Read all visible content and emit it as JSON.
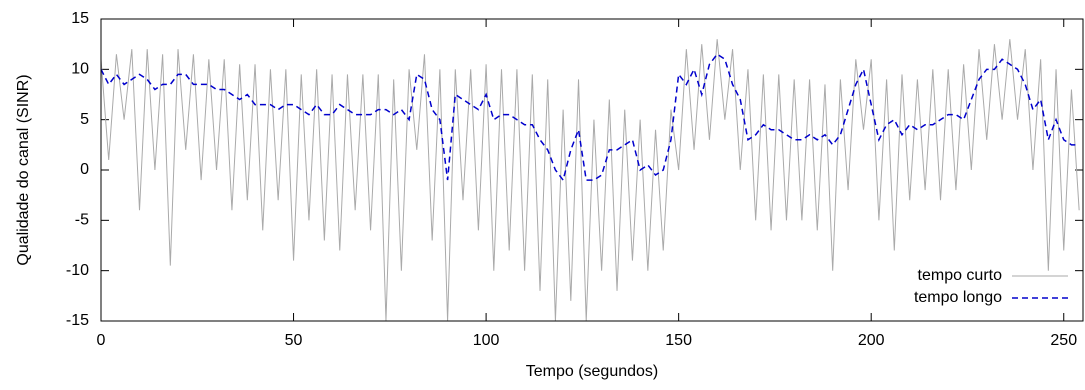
{
  "chart_data": {
    "type": "line",
    "xlabel": "Tempo (segundos)",
    "ylabel": "Qualidade do canal (SINR)",
    "xlim": [
      0,
      255
    ],
    "xticks": [
      0,
      50,
      100,
      150,
      200,
      250
    ],
    "ylim": [
      -15,
      15
    ],
    "yticks": [
      -15,
      -10,
      -5,
      0,
      5,
      10,
      15
    ],
    "legend": "lower right",
    "x": [
      0,
      2,
      4,
      6,
      8,
      10,
      12,
      14,
      16,
      18,
      20,
      22,
      24,
      26,
      28,
      30,
      32,
      34,
      36,
      38,
      40,
      42,
      44,
      46,
      48,
      50,
      52,
      54,
      56,
      58,
      60,
      62,
      64,
      66,
      68,
      70,
      72,
      74,
      76,
      78,
      80,
      82,
      84,
      86,
      88,
      90,
      92,
      94,
      96,
      98,
      100,
      102,
      104,
      106,
      108,
      110,
      112,
      114,
      116,
      118,
      120,
      122,
      124,
      126,
      128,
      130,
      132,
      134,
      136,
      138,
      140,
      142,
      144,
      146,
      148,
      150,
      152,
      154,
      156,
      158,
      160,
      162,
      164,
      166,
      168,
      170,
      172,
      174,
      176,
      178,
      180,
      182,
      184,
      186,
      188,
      190,
      192,
      194,
      196,
      198,
      200,
      202,
      204,
      206,
      208,
      210,
      212,
      214,
      216,
      218,
      220,
      222,
      224,
      226,
      228,
      230,
      232,
      234,
      236,
      238,
      240,
      242,
      244,
      246,
      248,
      250,
      252,
      254
    ],
    "series": [
      {
        "name": "tempo curto",
        "color": "#aaaaaa",
        "dash": "none",
        "values": [
          11,
          1,
          11.5,
          5,
          12,
          -4,
          12,
          0,
          11.5,
          -9.5,
          12,
          2,
          11.5,
          -1,
          11,
          0,
          11,
          -4,
          10.5,
          -3,
          10.5,
          -6,
          10,
          -3,
          10,
          -9,
          9.5,
          -5,
          10,
          -7,
          9.5,
          -8,
          9.5,
          -4,
          9.5,
          -6,
          9.5,
          -15,
          9,
          -10,
          10,
          2,
          11.5,
          -7,
          10,
          -15,
          10,
          -3,
          10,
          -6,
          10.5,
          -10,
          10,
          -8,
          10,
          -10,
          9.5,
          -12,
          9,
          -15,
          6,
          -13,
          9,
          -15,
          5,
          -10,
          7,
          -12,
          6,
          -9,
          5,
          -10,
          4,
          -8,
          6,
          0,
          12,
          2,
          12.5,
          3,
          13,
          5,
          12,
          0,
          10,
          -5,
          9.5,
          -6,
          9.5,
          -5,
          9,
          -5,
          9,
          -6,
          8.5,
          -10,
          9,
          -2,
          11,
          4,
          11,
          -5,
          9,
          -8,
          9.5,
          -3,
          9,
          -2,
          10,
          -3,
          10,
          -2,
          10.5,
          0,
          12,
          3,
          12.5,
          5,
          13,
          5,
          12,
          0,
          11,
          -10,
          10,
          -8,
          8,
          -4
        ]
      },
      {
        "name": "tempo longo",
        "color": "#0000cc",
        "dash": "6,4",
        "values": [
          10,
          8.5,
          9.5,
          8.5,
          9,
          9.5,
          9,
          8,
          8.5,
          8.5,
          9.5,
          9.5,
          8.5,
          8.5,
          8.5,
          8,
          8,
          7.5,
          7,
          7.5,
          6.5,
          6.5,
          6.5,
          6,
          6.5,
          6.5,
          6,
          5.5,
          6.5,
          5.5,
          5.5,
          6.5,
          6,
          5.5,
          5.5,
          5.5,
          6,
          6,
          5.5,
          6,
          5,
          9.5,
          9,
          6,
          5,
          -1,
          7.5,
          7,
          6.5,
          6,
          7.5,
          5,
          5.5,
          5.5,
          5,
          4.5,
          4.5,
          3,
          2,
          0,
          -1,
          2,
          4,
          -1,
          -1,
          -0.5,
          2,
          2,
          2.5,
          3,
          0,
          0.5,
          -0.5,
          0,
          3,
          9.5,
          8.5,
          10,
          7.5,
          10.5,
          11.5,
          11,
          8.5,
          7,
          3,
          3.5,
          4.5,
          4,
          4,
          3.5,
          3,
          3,
          3.5,
          3,
          3.5,
          2.5,
          3.5,
          6,
          8.5,
          10,
          6.5,
          3,
          4.5,
          5,
          3.5,
          4.5,
          4,
          4.5,
          4.5,
          5,
          5.5,
          5.5,
          5,
          7,
          9,
          10,
          10,
          11,
          10.5,
          10,
          8.5,
          6,
          7,
          3,
          5,
          3,
          2.5,
          2.5
        ]
      }
    ]
  }
}
